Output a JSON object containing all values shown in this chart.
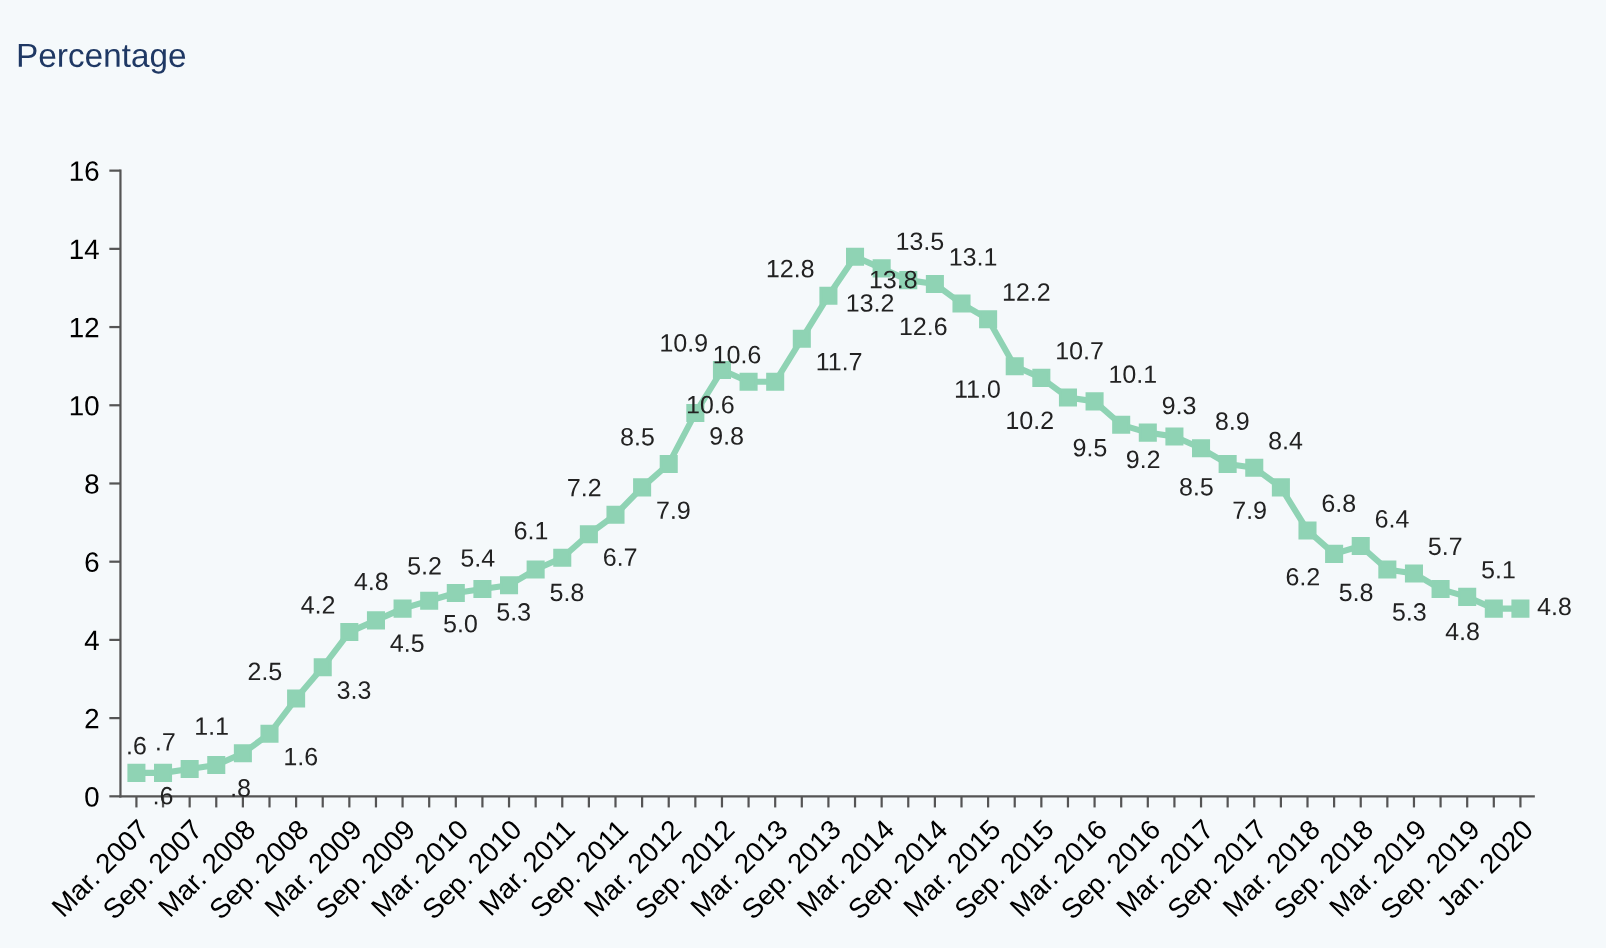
{
  "chart_data": {
    "type": "line",
    "title": "Percentage",
    "categories": [
      "Mar. 2007",
      null,
      "Sep. 2007",
      null,
      "Mar. 2008",
      null,
      "Sep. 2008",
      null,
      "Mar. 2009",
      null,
      "Sep. 2009",
      null,
      "Mar. 2010",
      null,
      "Sep. 2010",
      null,
      "Mar. 2011",
      null,
      "Sep. 2011",
      null,
      "Mar. 2012",
      null,
      "Sep. 2012",
      null,
      "Mar. 2013",
      null,
      "Sep. 2013",
      null,
      "Mar. 2014",
      null,
      "Sep. 2014",
      null,
      "Mar. 2015",
      null,
      "Sep. 2015",
      null,
      "Mar. 2016",
      null,
      "Sep. 2016",
      null,
      "Mar. 2017",
      null,
      "Sep. 2017",
      null,
      "Mar. 2018",
      null,
      "Sep. 2018",
      null,
      "Mar. 2019",
      null,
      "Sep. 2019",
      null,
      "Jan. 2020"
    ],
    "series": [
      {
        "color": "#8fd3b4",
        "values": [
          0.6,
          0.6,
          0.7,
          0.8,
          1.1,
          1.6,
          2.5,
          3.3,
          4.2,
          4.5,
          4.8,
          5.0,
          5.2,
          5.3,
          5.4,
          5.8,
          6.1,
          6.7,
          7.2,
          7.9,
          8.5,
          9.8,
          10.9,
          10.6,
          10.6,
          11.7,
          12.8,
          13.8,
          13.5,
          13.2,
          13.1,
          12.6,
          12.2,
          11.0,
          10.7,
          10.2,
          10.1,
          9.5,
          9.3,
          9.2,
          8.9,
          8.5,
          8.4,
          7.9,
          6.8,
          6.2,
          6.4,
          5.8,
          5.7,
          5.3,
          5.1,
          4.8,
          4.8
        ],
        "value_labels": [
          ".6",
          ".6",
          ".7",
          ".8",
          "1.1",
          "1.6",
          "2.5",
          "3.3",
          "4.2",
          "4.5",
          "4.8",
          "5.0",
          "5.2",
          "5.3",
          "5.4",
          "5.8",
          "6.1",
          "6.7",
          "7.2",
          "7.9",
          "8.5",
          "9.8",
          "10.9",
          "10.6",
          "10.6",
          "11.7",
          "12.8",
          "13.8",
          "13.5",
          "13.2",
          "13.1",
          "12.6",
          "12.2",
          "11.0",
          "10.7",
          "10.2",
          "10.1",
          "9.5",
          "9.3",
          "9.2",
          "8.9",
          "8.5",
          "8.4",
          "7.9",
          "6.8",
          "6.2",
          "6.4",
          "5.8",
          "5.7",
          "5.3",
          "5.1",
          "4.8",
          "4.8"
        ]
      }
    ],
    "ylim": [
      0,
      16
    ],
    "yticks": [
      0,
      2,
      4,
      6,
      8,
      10,
      12,
      14,
      16
    ],
    "grid": false,
    "marker": "square",
    "line_style": "solid"
  }
}
